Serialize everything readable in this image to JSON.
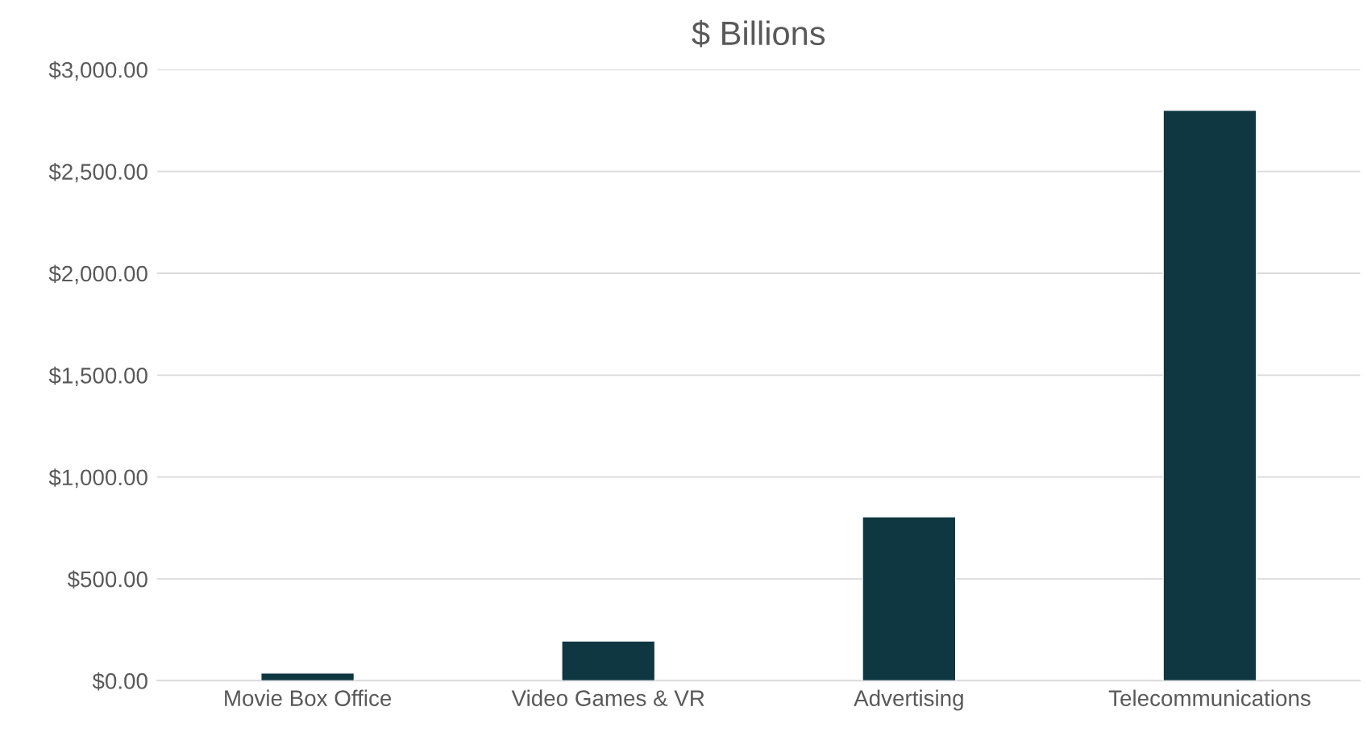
{
  "chart_data": {
    "type": "bar",
    "title": "$ Billions",
    "categories": [
      "Movie Box Office",
      "Video Games & VR",
      "Advertising",
      "Telecommunications"
    ],
    "values": [
      38,
      195,
      805,
      2800
    ],
    "color": "#0f3741",
    "ylim": [
      0,
      3000
    ],
    "yticks": [
      {
        "value": 0,
        "label": "$0.00"
      },
      {
        "value": 500,
        "label": "$500.00"
      },
      {
        "value": 1000,
        "label": "$1,000.00"
      },
      {
        "value": 1500,
        "label": "$1,500.00"
      },
      {
        "value": 2000,
        "label": "$2,000.00"
      },
      {
        "value": 2500,
        "label": "$2,500.00"
      },
      {
        "value": 3000,
        "label": "$3,000.00"
      }
    ],
    "grid": "y",
    "legend": false
  }
}
